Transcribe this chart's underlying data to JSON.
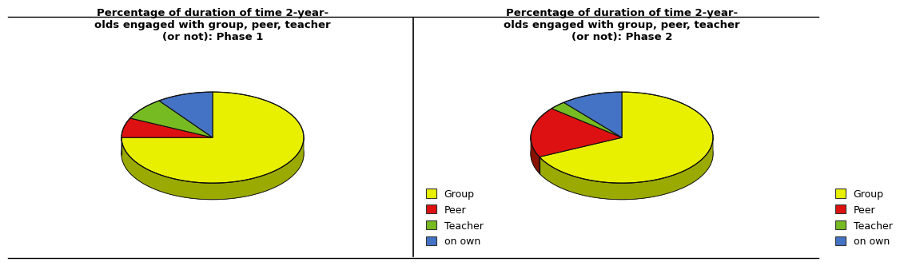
{
  "title1": "Percentage of duration of time 2-year-\nolds engaged with group, peer, teacher\n(or not): Phase 1",
  "title2": "Percentage of duration of time 2-year-\nolds engaged with group, peer, teacher\n(or not): Phase 2",
  "labels": [
    "Group",
    "Peer",
    "Teacher",
    "on own"
  ],
  "colors": [
    "#e8f000",
    "#dd1111",
    "#77bb22",
    "#4472c4"
  ],
  "side_colors": [
    "#9aaa00",
    "#881100",
    "#336600",
    "#223388"
  ],
  "bottom_color": "#9aaa00",
  "edge_color": "#111111",
  "phase1_values": [
    75,
    7,
    8,
    10
  ],
  "phase2_values": [
    68,
    18,
    3,
    11
  ],
  "background_color": "#ffffff",
  "title_fontsize": 9.5,
  "legend_fontsize": 9,
  "start_angle": 90
}
